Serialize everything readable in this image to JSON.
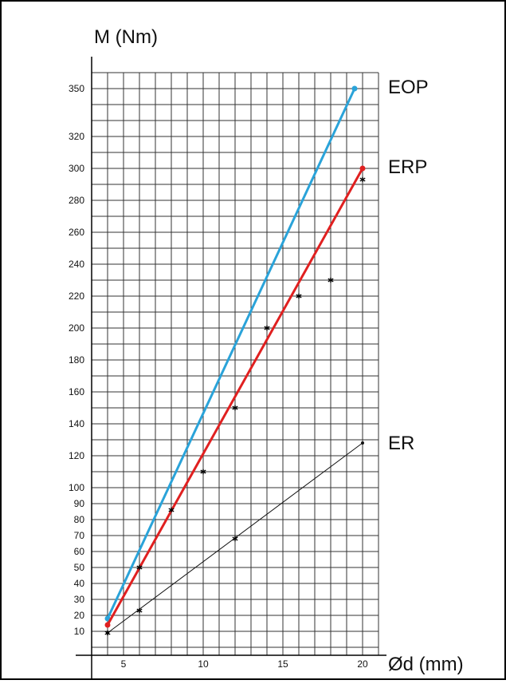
{
  "chart_data": {
    "type": "line",
    "ylabel": "M (Nm)",
    "xlabel": "Ød (mm)",
    "x_ticks": [
      5,
      10,
      15,
      20
    ],
    "y_ticks": [
      10,
      20,
      30,
      40,
      50,
      60,
      70,
      80,
      90,
      100,
      120,
      140,
      160,
      180,
      200,
      220,
      240,
      260,
      280,
      300,
      320,
      350
    ],
    "xlim": [
      4,
      20
    ],
    "grid": true,
    "series": [
      {
        "name": "EOP",
        "color": "#2aa3d9",
        "x": [
          4,
          19.5
        ],
        "y": [
          18,
          350
        ]
      },
      {
        "name": "ERP",
        "color": "#e02020",
        "x": [
          4,
          20
        ],
        "y": [
          14,
          300
        ]
      },
      {
        "name": "ER",
        "color": "#111111",
        "x": [
          4,
          20
        ],
        "y": [
          9,
          128
        ]
      }
    ],
    "measured_points": {
      "x": [
        6,
        8,
        10,
        12,
        14,
        16,
        18,
        20,
        4,
        6,
        12
      ],
      "y": [
        50,
        86,
        110,
        150,
        200,
        220,
        230,
        293,
        9,
        23,
        68
      ]
    }
  }
}
